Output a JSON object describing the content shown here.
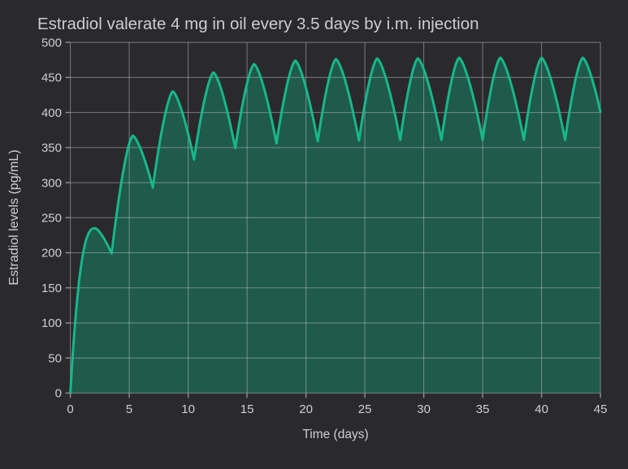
{
  "chart_data": {
    "type": "area",
    "title": "Estradiol valerate 4 mg in oil every 3.5 days by i.m. injection",
    "xlabel": "Time (days)",
    "ylabel": "Estradiol levels (pg/mL)",
    "xlim": [
      0,
      45
    ],
    "ylim": [
      0,
      500
    ],
    "x_ticks": [
      0,
      5,
      10,
      15,
      20,
      25,
      30,
      35,
      40,
      45
    ],
    "y_ticks": [
      0,
      50,
      100,
      150,
      200,
      250,
      300,
      350,
      400,
      450,
      500
    ],
    "grid": true,
    "legend": "none",
    "dose_interval_days": 3.5,
    "series": [
      {
        "name": "Estradiol level (pg/mL)",
        "start": [
          0,
          0
        ],
        "peaks": [
          [
            2.1,
            235
          ],
          [
            5.3,
            367
          ],
          [
            8.7,
            430
          ],
          [
            12.15,
            457
          ],
          [
            15.6,
            469
          ],
          [
            19.1,
            474
          ],
          [
            22.55,
            476
          ],
          [
            26.05,
            477
          ],
          [
            29.5,
            477
          ],
          [
            33.0,
            478
          ],
          [
            36.5,
            478
          ],
          [
            40.0,
            478
          ],
          [
            43.5,
            478
          ]
        ],
        "troughs": [
          [
            3.5,
            199
          ],
          [
            7,
            293
          ],
          [
            10.5,
            333
          ],
          [
            14,
            349
          ],
          [
            17.5,
            356
          ],
          [
            21,
            359
          ],
          [
            24.5,
            360
          ],
          [
            28,
            361
          ],
          [
            31.5,
            361
          ],
          [
            35,
            361
          ],
          [
            38.5,
            361
          ],
          [
            42,
            361
          ]
        ],
        "end": [
          45,
          401
        ],
        "next_trough_projection": [
          45.5,
          361
        ],
        "shape_exponents": {
          "initial_rise": 2.6,
          "rise": 1.5,
          "fall": 1.45
        }
      }
    ],
    "colors": {
      "line": "#17b78a",
      "fill": "#1f5a4b",
      "grid_line": "rgba(200,200,205,0.5)",
      "tick_mark": "#8a8a8e",
      "background": "#2a2a2d",
      "text": "#cfcfd2",
      "title_text": "#cdcdd0"
    }
  }
}
